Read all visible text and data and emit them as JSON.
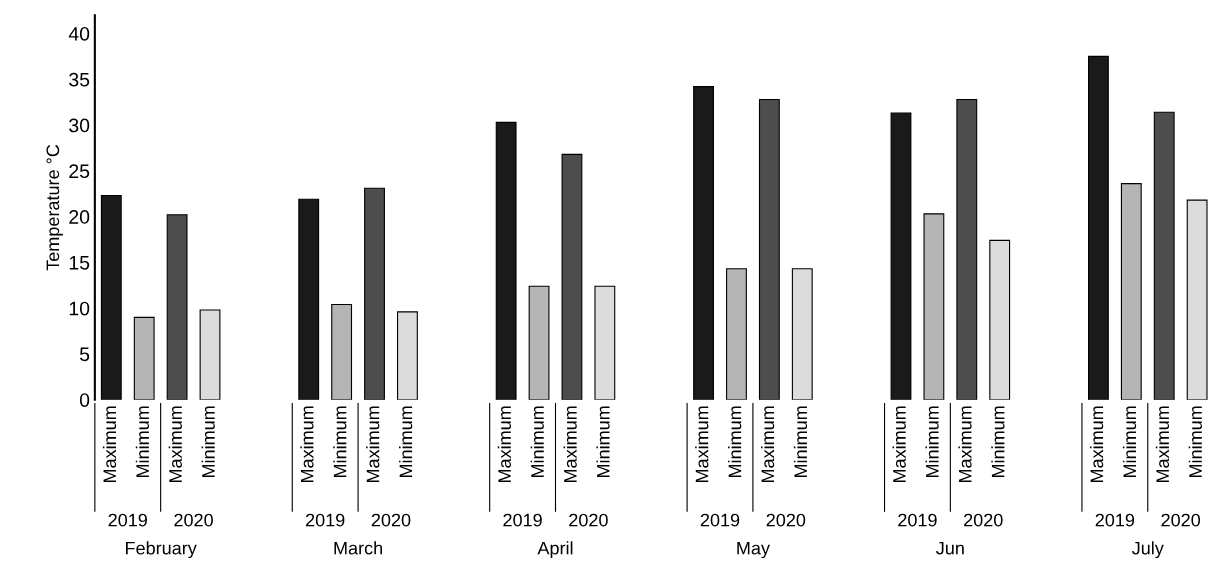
{
  "chart_data": {
    "type": "bar",
    "ylabel": "Temperature °C",
    "categories": [
      "Maximum",
      "Minimum",
      "Maximum",
      "Minimum",
      null,
      null,
      "Maximum",
      "Minimum",
      "Maximum",
      "Minimum",
      null,
      null,
      "Maximum",
      "Minimum",
      "Maximum",
      "Minimum",
      null,
      null,
      "Maximum",
      "Minimum",
      "Maximum",
      "Minimum",
      null,
      null,
      "Maximum",
      "Minimum",
      "Maximum",
      "Minimum",
      null,
      null,
      "Maximum",
      "Minimum",
      "Maximum",
      "Minimum"
    ],
    "values": [
      22.3,
      9.0,
      20.2,
      9.8,
      null,
      null,
      21.9,
      10.4,
      23.1,
      9.6,
      null,
      null,
      30.3,
      12.4,
      26.8,
      12.4,
      null,
      null,
      34.2,
      14.3,
      32.8,
      14.3,
      null,
      null,
      31.3,
      20.3,
      32.8,
      17.4,
      null,
      null,
      37.5,
      23.6,
      31.4,
      21.8
    ],
    "colors": [
      "#1a1a1a",
      "#b5b5b5",
      "#4d4d4d",
      "#dcdcdc",
      null,
      null,
      "#1a1a1a",
      "#b5b5b5",
      "#4d4d4d",
      "#dcdcdc",
      null,
      null,
      "#1a1a1a",
      "#b5b5b5",
      "#4d4d4d",
      "#dcdcdc",
      null,
      null,
      "#1a1a1a",
      "#b5b5b5",
      "#4d4d4d",
      "#dcdcdc",
      null,
      null,
      "#1a1a1a",
      "#b5b5b5",
      "#4d4d4d",
      "#dcdcdc",
      null,
      null,
      "#1a1a1a",
      "#b5b5b5",
      "#4d4d4d",
      "#dcdcdc"
    ],
    "ylim": [
      0,
      42
    ],
    "yticks": [
      0,
      5,
      10,
      15,
      20,
      25,
      30,
      35,
      40
    ],
    "grid": false,
    "legend": false,
    "annotations": [
      "2019",
      "2020",
      "2019",
      "2020",
      "2019",
      "2020",
      "2019",
      "2020",
      "2019",
      "2020",
      "2019",
      "2020",
      "February",
      "March",
      "April",
      "May",
      "Jun",
      "July"
    ]
  }
}
